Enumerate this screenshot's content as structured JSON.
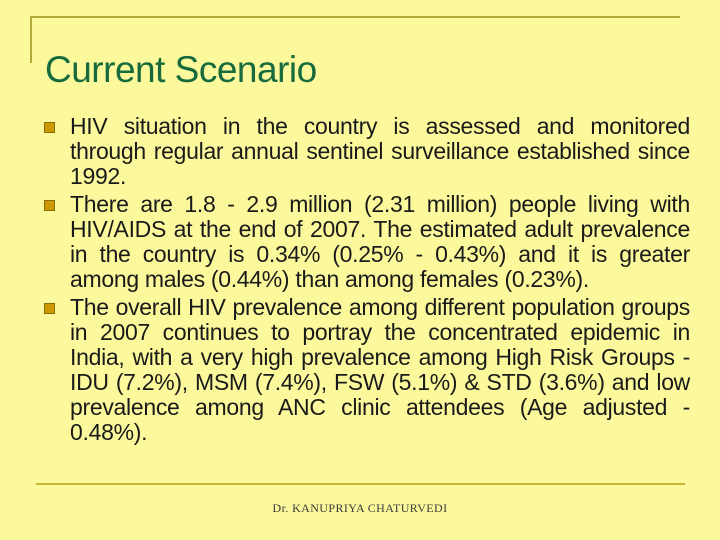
{
  "slide": {
    "title": "Current Scenario",
    "bullets": [
      {
        "text": "HIV situation in the country is assessed and monitored through regular annual sentinel surveillance established since 1992."
      },
      {
        "text": "There are 1.8 - 2.9 million (2.31 million) people living with HIV/AIDS at the end of 2007. The estimated adult prevalence in the country is 0.34% (0.25% - 0.43%) and it is greater among males (0.44%) than among females (0.23%)."
      },
      {
        "text": "The overall HIV prevalence among different population groups in 2007 continues to portray the concentrated epidemic in India, with a very high prevalence among High Risk Groups - IDU (7.2%), MSM (7.4%), FSW (5.1%) & STD (3.6%) and low prevalence among ANC clinic attendees (Age adjusted - 0.48%)."
      }
    ],
    "footer": "Dr. KANUPRIYA CHATURVEDI",
    "icons": {
      "bullet": "square-bullet-icon"
    },
    "colors": {
      "background": "#FBF99B",
      "title_text": "#166A3C",
      "body_text": "#1A1A1A",
      "bullet_fill": "#CC9900",
      "bullet_border": "#8A6D00",
      "rule_top": "#B3A83C",
      "rule_bottom": "#C7B339",
      "footer_text": "#3A3A3A"
    }
  }
}
